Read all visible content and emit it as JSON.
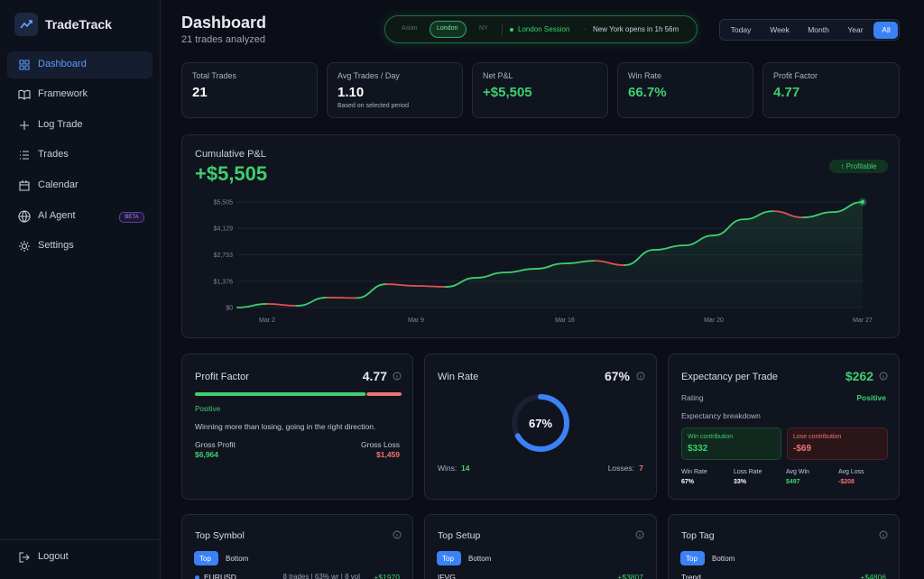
{
  "sidebar": {
    "brand": "TradeTrack",
    "nav": [
      "Dashboard",
      "Framework",
      "Log Trade",
      "Trades",
      "Calendar",
      "AI Agent",
      "Settings"
    ],
    "badge": "BETA",
    "logout": "Logout"
  },
  "header": {
    "title": "Dashboard",
    "subtitle": "21 trades analyzed"
  },
  "session": {
    "tabs": [
      "Asian",
      "London",
      "NY"
    ],
    "current": "London Session",
    "separator": "·",
    "next": "New York opens in 1h 56m"
  },
  "periods": [
    "Today",
    "Week",
    "Month",
    "Year",
    "All"
  ],
  "stats": [
    {
      "label": "Total Trades",
      "value": "21"
    },
    {
      "label": "Avg Trades / Day",
      "value": "1.10",
      "note": "Based on selected period"
    },
    {
      "label": "Net P&L",
      "value": "+$5,505"
    },
    {
      "label": "Win Rate",
      "value": "66.7%"
    },
    {
      "label": "Profit Factor",
      "value": "4.77"
    }
  ],
  "chart_data": {
    "type": "line",
    "title": "Cumulative P&L",
    "headline": "+$5,505",
    "badge": "↑ Profitable",
    "categories": [
      null,
      "Mar 2",
      null,
      null,
      null,
      null,
      "Mar 9",
      null,
      null,
      null,
      null,
      "Mar 16",
      null,
      null,
      null,
      null,
      "Mar 20",
      null,
      null,
      null,
      null,
      "Mar 27"
    ],
    "values": [
      0,
      190,
      90,
      520,
      500,
      1220,
      1130,
      1080,
      1550,
      1830,
      2020,
      2300,
      2440,
      2210,
      3010,
      3240,
      3760,
      4600,
      5030,
      4700,
      4980,
      5505
    ],
    "color": "#3ecf6e",
    "down_color": "#e0524f",
    "ylim": [
      0,
      5505
    ],
    "yticks": [
      {
        "value": 0,
        "label": "$0"
      },
      {
        "value": 1376,
        "label": "$1,376"
      },
      {
        "value": 2753,
        "label": "$2,753"
      },
      {
        "value": 4129,
        "label": "$4,129"
      },
      {
        "value": 5505,
        "label": "$5,505"
      }
    ],
    "grid": true
  },
  "profit_factor": {
    "title": "Profit Factor",
    "value": "4.77",
    "rating": "Positive",
    "description": "Winning more than losing, going in the right direction.",
    "gross_profit": {
      "label": "Gross Profit",
      "value": 6964,
      "value_label": "$6,964"
    },
    "gross_loss": {
      "label": "Gross Loss",
      "value": 1459,
      "value_label": "$1,459"
    }
  },
  "win_rate": {
    "title": "Win Rate",
    "value": "67%",
    "center": "67%",
    "wins_label": "Wins:",
    "wins": 14,
    "losses_label": "Losses:",
    "losses": 7
  },
  "expectancy": {
    "title": "Expectancy per Trade",
    "value": "$262",
    "rating_label": "Rating",
    "rating": "Positive",
    "breakdown": "Expectancy breakdown",
    "win_contribution": {
      "label": "Win contribution",
      "value": "$332"
    },
    "lose_contribution": {
      "label": "Lose contribution",
      "value": "-$69"
    },
    "metrics": [
      {
        "label": "Win Rate",
        "value": "67%"
      },
      {
        "label": "Loss Rate",
        "value": "33%"
      },
      {
        "label": "Avg Win",
        "value": "$497"
      },
      {
        "label": "Avg Loss",
        "value": "-$208"
      }
    ]
  },
  "top_lists": [
    {
      "title": "Top Symbol",
      "tabs": [
        "Top",
        "Bottom"
      ],
      "rows": [
        {
          "name": "EURUSD",
          "detail": "8 trades | 63% wr | 8 vol",
          "pnl": "+$1970"
        }
      ]
    },
    {
      "title": "Top Setup",
      "tabs": [
        "Top",
        "Bottom"
      ],
      "rows": [
        {
          "name": "IFVG",
          "pnl": "+$3807"
        }
      ]
    },
    {
      "title": "Top Tag",
      "tabs": [
        "Top",
        "Bottom"
      ],
      "rows": [
        {
          "name": "Trend",
          "pnl": "+$4806"
        }
      ]
    }
  ]
}
